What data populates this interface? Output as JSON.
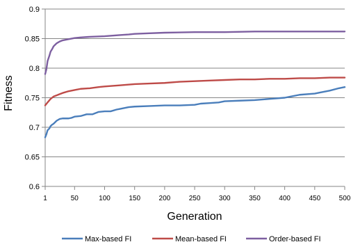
{
  "chart_data": {
    "type": "line",
    "xlabel": "Generation",
    "ylabel": "Fitness",
    "xlim": [
      1,
      500
    ],
    "ylim": [
      0.6,
      0.9
    ],
    "x_ticks": [
      "1",
      "50",
      "100",
      "150",
      "200",
      "250",
      "300",
      "350",
      "400",
      "450",
      "500"
    ],
    "y_ticks": [
      "0.6",
      "0.65",
      "0.7",
      "0.75",
      "0.8",
      "0.85",
      "0.9"
    ],
    "grid": "horizontal",
    "legend_position": "bottom",
    "series": [
      {
        "name": "Max-based FI",
        "color": "#4a7ebb",
        "x": [
          1,
          3,
          5,
          8,
          10,
          12,
          15,
          18,
          20,
          25,
          30,
          35,
          40,
          45,
          50,
          60,
          70,
          80,
          90,
          100,
          110,
          120,
          125,
          130,
          140,
          150,
          175,
          200,
          225,
          250,
          260,
          275,
          290,
          300,
          325,
          350,
          375,
          400,
          410,
          425,
          450,
          460,
          475,
          490,
          500
        ],
        "y": [
          0.683,
          0.688,
          0.695,
          0.698,
          0.702,
          0.704,
          0.706,
          0.709,
          0.711,
          0.714,
          0.715,
          0.715,
          0.715,
          0.716,
          0.718,
          0.719,
          0.722,
          0.722,
          0.726,
          0.727,
          0.727,
          0.73,
          0.731,
          0.732,
          0.734,
          0.735,
          0.736,
          0.737,
          0.737,
          0.738,
          0.74,
          0.741,
          0.742,
          0.744,
          0.745,
          0.746,
          0.748,
          0.75,
          0.752,
          0.755,
          0.757,
          0.759,
          0.762,
          0.766,
          0.768
        ]
      },
      {
        "name": "Mean-based FI",
        "color": "#be4b48",
        "x": [
          1,
          5,
          10,
          15,
          20,
          25,
          30,
          40,
          50,
          60,
          75,
          90,
          100,
          125,
          150,
          175,
          200,
          225,
          250,
          275,
          300,
          325,
          350,
          375,
          400,
          425,
          450,
          475,
          500
        ],
        "y": [
          0.737,
          0.742,
          0.748,
          0.752,
          0.754,
          0.756,
          0.758,
          0.761,
          0.763,
          0.765,
          0.766,
          0.768,
          0.769,
          0.771,
          0.773,
          0.774,
          0.775,
          0.777,
          0.778,
          0.779,
          0.78,
          0.781,
          0.781,
          0.782,
          0.782,
          0.783,
          0.783,
          0.784,
          0.784
        ]
      },
      {
        "name": "Order-based FI",
        "color": "#7d5fa0",
        "x": [
          1,
          3,
          5,
          8,
          10,
          13,
          15,
          18,
          20,
          25,
          30,
          40,
          50,
          60,
          75,
          100,
          125,
          140,
          150,
          175,
          200,
          250,
          300,
          350,
          400,
          450,
          500
        ],
        "y": [
          0.79,
          0.798,
          0.812,
          0.821,
          0.828,
          0.833,
          0.837,
          0.84,
          0.842,
          0.845,
          0.847,
          0.849,
          0.851,
          0.852,
          0.853,
          0.854,
          0.856,
          0.857,
          0.858,
          0.859,
          0.86,
          0.861,
          0.861,
          0.862,
          0.862,
          0.862,
          0.862
        ]
      }
    ]
  }
}
